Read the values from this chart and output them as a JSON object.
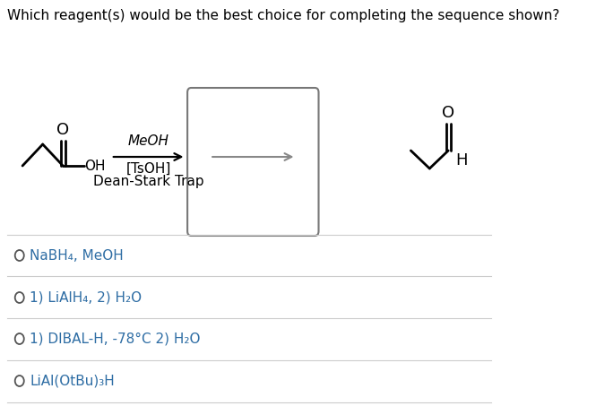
{
  "title": "Which reagent(s) would be the best choice for completing the sequence shown?",
  "title_fontsize": 11,
  "title_color": "#000000",
  "bg_color": "#ffffff",
  "options": [
    "NaBH₄, MeOH",
    "1) LiAlH₄, 2) H₂O",
    "1) DIBAL-H, -78°C 2) H₂O",
    "LiAl(OtBu)₃H"
  ],
  "option_color": "#2e6da4",
  "reagent_line1": "MeOH",
  "reagent_line2": "[TsOH]",
  "reagent_line3": "Dean-Stark Trap",
  "lw": 1.8,
  "mol_lw": 2.0,
  "divider_color": "#cccccc",
  "circle_color": "#555555",
  "rect_edge_color": "#777777",
  "arrow_color": "#000000",
  "inner_arrow_color": "#888888"
}
